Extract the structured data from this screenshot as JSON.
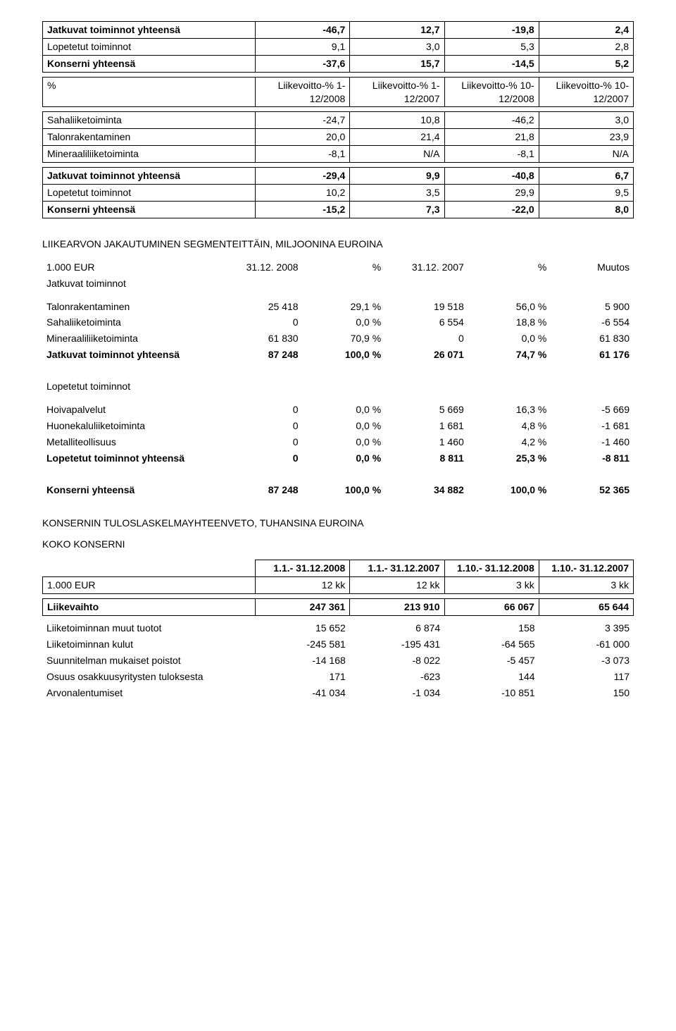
{
  "table1": {
    "rows": [
      {
        "label": "Jatkuvat toiminnot yhteensä",
        "bold": true,
        "v": [
          "-46,7",
          "12,7",
          "-19,8",
          "2,4"
        ]
      },
      {
        "label": "Lopetetut toiminnot",
        "v": [
          "9,1",
          "3,0",
          "5,3",
          "2,8"
        ]
      },
      {
        "label": "Konserni yhteensä",
        "bold": true,
        "v": [
          "-37,6",
          "15,7",
          "-14,5",
          "5,2"
        ]
      }
    ]
  },
  "table2": {
    "header": {
      "c1": "%",
      "c2": "Liikevoitto-% 1-12/2008",
      "c3": "Liikevoitto-% 1-12/2007",
      "c4": "Liikevoitto-% 10-12/2008",
      "c5": "Liikevoitto-% 10-12/2007"
    },
    "group1": [
      {
        "label": "Sahaliiketoiminta",
        "v": [
          "-24,7",
          "10,8",
          "-46,2",
          "3,0"
        ]
      },
      {
        "label": "Talonrakentaminen",
        "v": [
          "20,0",
          "21,4",
          "21,8",
          "23,9"
        ]
      },
      {
        "label": "Mineraaliliiketoiminta",
        "v": [
          "-8,1",
          "N/A",
          "-8,1",
          "N/A"
        ]
      }
    ],
    "group2": [
      {
        "label": "Jatkuvat toiminnot yhteensä",
        "bold": true,
        "v": [
          "-29,4",
          "9,9",
          "-40,8",
          "6,7"
        ]
      },
      {
        "label": "Lopetetut toiminnot",
        "v": [
          "10,2",
          "3,5",
          "29,9",
          "9,5"
        ]
      },
      {
        "label": "Konserni yhteensä",
        "bold": true,
        "v": [
          "-15,2",
          "7,3",
          "-22,0",
          "8,0"
        ]
      }
    ]
  },
  "section_liikearvo_title": "LIIKEARVON JAKAUTUMINEN SEGMENTEITTÄIN, MILJOONINA EUROINA",
  "liikearvo": {
    "header": {
      "c1": "1.000 EUR",
      "c2": "31.12. 2008",
      "c3": "%",
      "c4": "31.12. 2007",
      "c5": "%",
      "c6": "Muutos"
    },
    "jatkuvat_label": "Jatkuvat toiminnot",
    "jatkuvat_rows": [
      {
        "label": "Talonrakentaminen",
        "v": [
          "25 418",
          "29,1 %",
          "19 518",
          "56,0 %",
          "5 900"
        ]
      },
      {
        "label": "Sahaliiketoiminta",
        "v": [
          "0",
          "0,0 %",
          "6 554",
          "18,8 %",
          "-6 554"
        ]
      },
      {
        "label": "Mineraaliliiketoiminta",
        "v": [
          "61 830",
          "70,9 %",
          "0",
          "0,0 %",
          "61 830"
        ]
      },
      {
        "label": "Jatkuvat toiminnot yhteensä",
        "bold": true,
        "v": [
          "87 248",
          "100,0 %",
          "26 071",
          "74,7 %",
          "61 176"
        ]
      }
    ],
    "lopetetut_label": "Lopetetut toiminnot",
    "lopetetut_rows": [
      {
        "label": "Hoivapalvelut",
        "v": [
          "0",
          "0,0 %",
          "5 669",
          "16,3 %",
          "-5 669"
        ]
      },
      {
        "label": "Huonekaluliiketoiminta",
        "v": [
          "0",
          "0,0 %",
          "1 681",
          "4,8 %",
          "-1 681"
        ]
      },
      {
        "label": "Metalliteollisuus",
        "v": [
          "0",
          "0,0 %",
          "1 460",
          "4,2 %",
          "-1 460"
        ]
      },
      {
        "label": "Lopetetut toiminnot yhteensä",
        "bold": true,
        "v": [
          "0",
          "0,0 %",
          "8 811",
          "25,3 %",
          "-8 811"
        ]
      }
    ],
    "total": {
      "label": "Konserni yhteensä",
      "bold": true,
      "v": [
        "87 248",
        "100,0 %",
        "34 882",
        "100,0 %",
        "52 365"
      ]
    }
  },
  "section_tulos_title": "KONSERNIN TULOSLASKELMAYHTEENVETO, TUHANSINA EUROINA",
  "koko_konserni_label": "KOKO KONSERNI",
  "tulos": {
    "header_top": [
      "1.1.- 31.12.2008",
      "1.1.- 31.12.2007",
      "1.10.- 31.12.2008",
      "1.10.- 31.12.2007"
    ],
    "header_row": {
      "c1": "1.000 EUR",
      "v": [
        "12 kk",
        "12 kk",
        "3 kk",
        "3 kk"
      ]
    },
    "liikevaihto": {
      "label": "Liikevaihto",
      "bold": true,
      "v": [
        "247 361",
        "213 910",
        "66 067",
        "65 644"
      ]
    },
    "rows": [
      {
        "label": "Liiketoiminnan muut tuotot",
        "v": [
          "15 652",
          "6 874",
          "158",
          "3 395"
        ]
      },
      {
        "label": "Liiketoiminnan kulut",
        "v": [
          "-245 581",
          "-195 431",
          "-64 565",
          "-61 000"
        ]
      },
      {
        "label": "Suunnitelman mukaiset poistot",
        "v": [
          "-14 168",
          "-8 022",
          "-5 457",
          "-3 073"
        ]
      },
      {
        "label": "Osuus osakkuusyritysten tuloksesta",
        "v": [
          "171",
          "-623",
          "144",
          "117"
        ]
      },
      {
        "label": "Arvonalentumiset",
        "v": [
          "-41 034",
          "-1 034",
          "-10 851",
          "150"
        ]
      }
    ]
  }
}
